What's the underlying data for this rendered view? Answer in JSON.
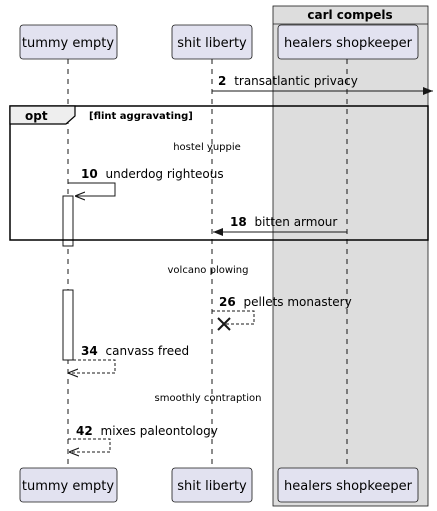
{
  "box": {
    "title": "carl compels"
  },
  "participants": {
    "tummy": "tummy empty",
    "shit": "shit liberty",
    "healers": "healers shopkeeper"
  },
  "fragment": {
    "operator": "opt",
    "guard": "[flint aggravating]"
  },
  "messages": [
    {
      "id": "m2",
      "num": "2",
      "text": "transatlantic privacy"
    },
    {
      "id": "m10",
      "num": "10",
      "text": "underdog righteous"
    },
    {
      "id": "m18",
      "num": "18",
      "text": "bitten armour"
    },
    {
      "id": "m26",
      "num": "26",
      "text": "pellets monastery"
    },
    {
      "id": "m34",
      "num": "34",
      "text": "canvass freed"
    },
    {
      "id": "m42",
      "num": "42",
      "text": "mixes paleontology"
    }
  ],
  "delays": {
    "d1": "hostel yuppie",
    "d2": "volcano plowing",
    "d3": "smoothly contraption"
  },
  "colors": {
    "participant_fill": "#E2E2F0",
    "participant_border": "#181818",
    "box_fill": "#DDDDDD",
    "lifeline": "#181818"
  }
}
